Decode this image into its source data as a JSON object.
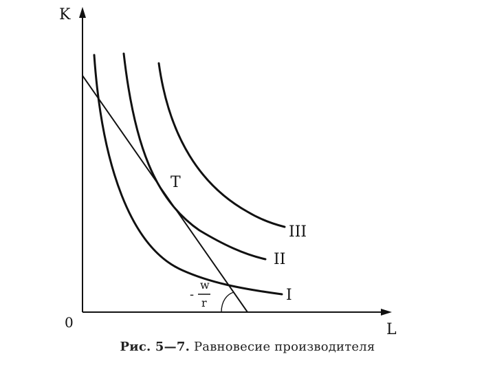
{
  "axes": {
    "y_label": "K",
    "x_label": "L",
    "origin_label": "0"
  },
  "curves": [
    {
      "label": "I"
    },
    {
      "label": "II"
    },
    {
      "label": "III"
    }
  ],
  "budget_line": {
    "slope_sign": "-",
    "slope_numerator": "w",
    "slope_denominator": "r"
  },
  "tangent_point_label": "T",
  "caption": {
    "figure": "Рис. 5—7.",
    "text": " Равновесие производителя"
  }
}
